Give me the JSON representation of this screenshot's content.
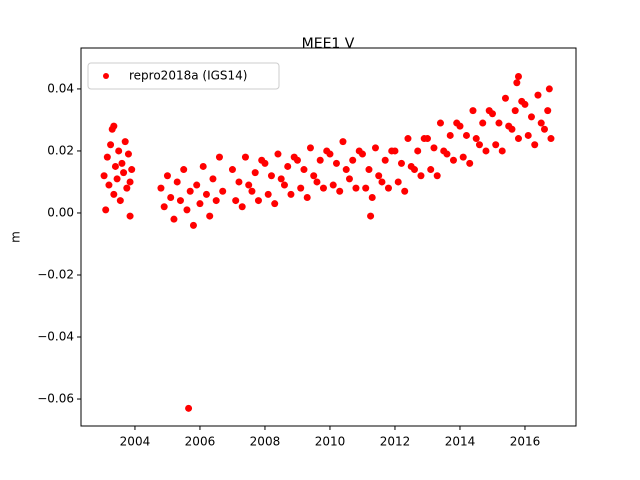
{
  "chart_data": {
    "type": "scatter",
    "title": "MEE1 V",
    "y_label": "m",
    "x": [
      2003.05,
      2003.1,
      2003.15,
      2003.2,
      2003.25,
      2003.3,
      2003.35,
      2003.4,
      2003.45,
      2003.5,
      2003.55,
      2003.6,
      2003.65,
      2003.7,
      2003.75,
      2003.8,
      2003.85,
      2003.9,
      2004.8,
      2004.9,
      2005.0,
      2005.1,
      2005.2,
      2005.3,
      2005.4,
      2005.5,
      2005.6,
      2005.7,
      2005.8,
      2005.9,
      2006.0,
      2006.1,
      2006.2,
      2006.3,
      2006.4,
      2006.5,
      2006.6,
      2006.7,
      2007.0,
      2007.1,
      2007.2,
      2007.3,
      2007.4,
      2007.5,
      2007.6,
      2007.7,
      2007.8,
      2007.9,
      2008.0,
      2008.1,
      2008.2,
      2008.3,
      2008.4,
      2008.5,
      2008.6,
      2008.7,
      2008.8,
      2008.9,
      2009.0,
      2009.1,
      2009.2,
      2009.3,
      2009.4,
      2009.5,
      2009.6,
      2009.7,
      2009.8,
      2009.9,
      2010.0,
      2010.1,
      2010.2,
      2010.3,
      2010.4,
      2010.5,
      2010.6,
      2010.7,
      2010.8,
      2010.9,
      2011.0,
      2011.1,
      2011.2,
      2011.3,
      2011.4,
      2011.5,
      2011.6,
      2011.7,
      2011.8,
      2011.9,
      2012.0,
      2012.1,
      2012.2,
      2012.3,
      2012.4,
      2012.5,
      2012.6,
      2012.7,
      2012.8,
      2012.9,
      2013.0,
      2013.1,
      2013.2,
      2013.3,
      2013.4,
      2013.5,
      2013.6,
      2013.7,
      2013.8,
      2013.9,
      2014.0,
      2014.1,
      2014.2,
      2014.3,
      2014.4,
      2014.5,
      2014.6,
      2014.7,
      2014.8,
      2014.9,
      2015.0,
      2015.1,
      2015.2,
      2015.3,
      2015.4,
      2015.5,
      2015.6,
      2015.7,
      2015.8,
      2015.9,
      2016.0,
      2016.1,
      2016.2,
      2016.3,
      2016.4,
      2016.5,
      2016.6,
      2016.7,
      2016.8,
      2003.35,
      2005.65,
      2011.25,
      2015.8,
      2015.75,
      2016.75,
      2003.85
    ],
    "series": [
      {
        "name": "repro2018a (IGS14)",
        "color": "#ff0000",
        "values": [
          0.012,
          0.001,
          0.018,
          0.009,
          0.022,
          0.027,
          0.006,
          0.015,
          0.011,
          0.02,
          0.004,
          0.016,
          0.013,
          0.023,
          0.008,
          0.019,
          0.01,
          0.014,
          0.008,
          0.002,
          0.012,
          0.005,
          -0.002,
          0.01,
          0.004,
          0.014,
          0.001,
          0.007,
          -0.004,
          0.009,
          0.003,
          0.015,
          0.006,
          -0.001,
          0.011,
          0.004,
          0.018,
          0.007,
          0.014,
          0.004,
          0.01,
          0.002,
          0.018,
          0.009,
          0.007,
          0.013,
          0.004,
          0.017,
          0.016,
          0.006,
          0.012,
          0.003,
          0.019,
          0.011,
          0.009,
          0.015,
          0.006,
          0.018,
          0.017,
          0.008,
          0.014,
          0.005,
          0.021,
          0.012,
          0.01,
          0.017,
          0.008,
          0.02,
          0.019,
          0.009,
          0.016,
          0.007,
          0.023,
          0.014,
          0.011,
          0.017,
          0.008,
          0.02,
          0.019,
          0.008,
          0.014,
          0.005,
          0.021,
          0.012,
          0.01,
          0.017,
          0.008,
          0.02,
          0.02,
          0.01,
          0.016,
          0.007,
          0.024,
          0.015,
          0.014,
          0.02,
          0.012,
          0.024,
          0.024,
          0.014,
          0.021,
          0.012,
          0.029,
          0.02,
          0.019,
          0.025,
          0.017,
          0.029,
          0.028,
          0.018,
          0.025,
          0.016,
          0.033,
          0.024,
          0.022,
          0.029,
          0.02,
          0.033,
          0.032,
          0.022,
          0.029,
          0.02,
          0.037,
          0.028,
          0.027,
          0.033,
          0.024,
          0.036,
          0.035,
          0.025,
          0.031,
          0.022,
          0.038,
          0.029,
          0.027,
          0.033,
          0.024,
          0.028,
          -0.063,
          -0.001,
          0.044,
          0.042,
          0.04,
          -0.001
        ]
      }
    ],
    "xlim": [
      2002.34,
      2017.57
    ],
    "ylim": [
      -0.0687,
      0.0532
    ],
    "xticks": [
      2004,
      2006,
      2008,
      2010,
      2012,
      2014,
      2016
    ],
    "yticks": [
      {
        "value": -0.06,
        "label": "−0.06"
      },
      {
        "value": -0.04,
        "label": "−0.04"
      },
      {
        "value": -0.02,
        "label": "−0.02"
      },
      {
        "value": 0,
        "label": "0.00"
      },
      0.02,
      0.04
    ],
    "legend": "upper left"
  }
}
